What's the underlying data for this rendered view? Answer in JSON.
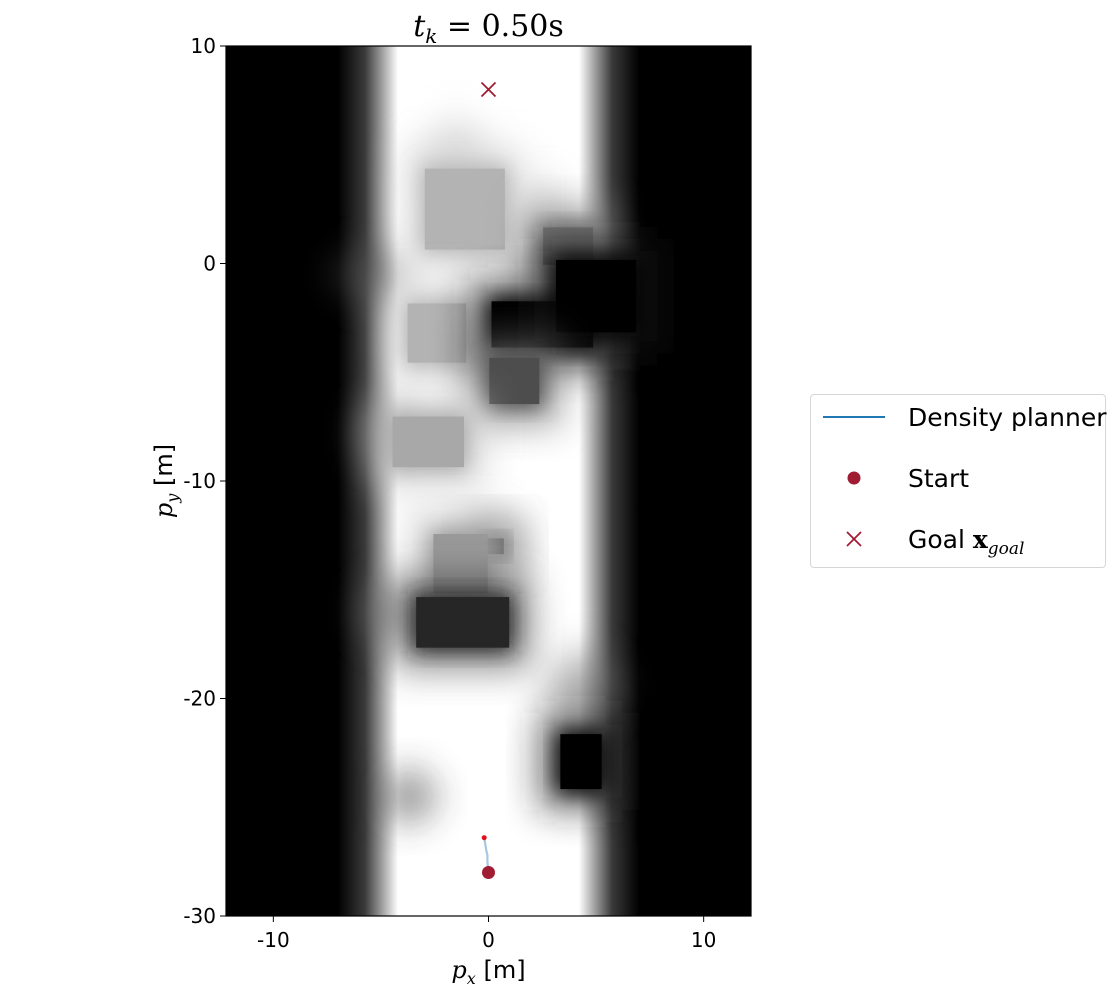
{
  "chart_data": {
    "type": "heatmap",
    "title": "t_k = 0.50s",
    "title_parts": {
      "var": "t",
      "sub": "k",
      "rest": " = 0.50s"
    },
    "xlabel": {
      "var": "p",
      "sub": "x",
      "unit": " [m]"
    },
    "ylabel": {
      "var": "p",
      "sub": "y",
      "unit": " [m]"
    },
    "xlim": [
      -12.2,
      12.2
    ],
    "ylim": [
      -30,
      10
    ],
    "xticks": [
      {
        "v": -10,
        "label": "-10"
      },
      {
        "v": 0,
        "label": "0"
      },
      {
        "v": 10,
        "label": "10"
      }
    ],
    "yticks": [
      {
        "v": 10,
        "label": "10"
      },
      {
        "v": 0,
        "label": "0"
      },
      {
        "v": -10,
        "label": "-10"
      },
      {
        "v": -20,
        "label": "-20"
      },
      {
        "v": -30,
        "label": "-30"
      }
    ],
    "grid": false,
    "legend_position": "right",
    "colors": {
      "trajectory": "#1f77b4",
      "trajectory_light": "#a8c6e0",
      "start": "#a01c33",
      "goal": "#a01c33",
      "current": "#e01020"
    },
    "corridor": {
      "x_min": -7.0,
      "x_max": 7.0,
      "free_x_min": -4.2,
      "free_x_max": 4.2
    },
    "obstacles": [
      {
        "cx": -1.1,
        "cy": 2.5,
        "hw": 2.0,
        "hh": 2.0,
        "level": 0.7
      },
      {
        "cx": 3.7,
        "cy": 0.8,
        "hw": 1.3,
        "hh": 1.0,
        "level": 0.45
      },
      {
        "cx": -2.4,
        "cy": -3.2,
        "hw": 1.5,
        "hh": 1.5,
        "level": 0.7
      },
      {
        "cx": 2.5,
        "cy": -2.8,
        "hw": 2.5,
        "hh": 1.2,
        "level": 0.0
      },
      {
        "cx": 5.0,
        "cy": -1.5,
        "hw": 2.0,
        "hh": 1.8,
        "level": 0.0
      },
      {
        "cx": 1.2,
        "cy": -5.4,
        "hw": 1.3,
        "hh": 1.2,
        "level": 0.3
      },
      {
        "cx": -2.8,
        "cy": -8.2,
        "hw": 1.8,
        "hh": 1.3,
        "level": 0.66
      },
      {
        "cx": 0.3,
        "cy": -13.0,
        "hw": 0.55,
        "hh": 0.5,
        "level": 0.3
      },
      {
        "cx": -1.3,
        "cy": -13.8,
        "hw": 1.4,
        "hh": 1.5,
        "level": 0.6
      },
      {
        "cx": -1.2,
        "cy": -16.5,
        "hw": 2.3,
        "hh": 1.3,
        "level": 0.15
      },
      {
        "cx": 4.3,
        "cy": -22.9,
        "hw": 1.1,
        "hh": 1.4,
        "level": 0.0
      }
    ],
    "cones": [
      {
        "cx": -1.5,
        "cy": 5.0,
        "w": 3.5,
        "h": 4.0,
        "level": 0.75
      },
      {
        "cx": 2.6,
        "cy": 2.0,
        "w": 3.5,
        "h": 4.0,
        "level": 0.7
      },
      {
        "cx": -5.5,
        "cy": -0.5,
        "w": 4.0,
        "h": 3.0,
        "level": 0.35
      },
      {
        "cx": -5.0,
        "cy": -7.8,
        "w": 3.0,
        "h": 3.0,
        "level": 0.45
      },
      {
        "cx": -4.7,
        "cy": -16.0,
        "w": 3.0,
        "h": 3.5,
        "level": 0.45
      },
      {
        "cx": 4.5,
        "cy": -19.5,
        "w": 4.0,
        "h": 4.0,
        "level": 0.4
      },
      {
        "cx": -3.7,
        "cy": -24.5,
        "w": 3.0,
        "h": 3.0,
        "level": 0.2
      }
    ],
    "trajectory": {
      "name": "Density planner",
      "x": [
        0.0,
        -0.05,
        -0.05,
        -0.1,
        -0.15,
        -0.2
      ],
      "y": [
        -28.0,
        -27.5,
        -27.2,
        -27.0,
        -26.7,
        -26.4
      ]
    },
    "start": {
      "name": "Start",
      "x": 0.0,
      "y": -28.0
    },
    "current": {
      "x": -0.2,
      "y": -26.4
    },
    "goal": {
      "name": "Goal x_goal",
      "x": 0.0,
      "y": 8.0
    }
  },
  "legend": {
    "items": [
      {
        "label": "Density planner"
      },
      {
        "label": "Start"
      },
      {
        "label_main": "Goal ",
        "label_math": "x",
        "label_sub": "goal"
      }
    ]
  }
}
